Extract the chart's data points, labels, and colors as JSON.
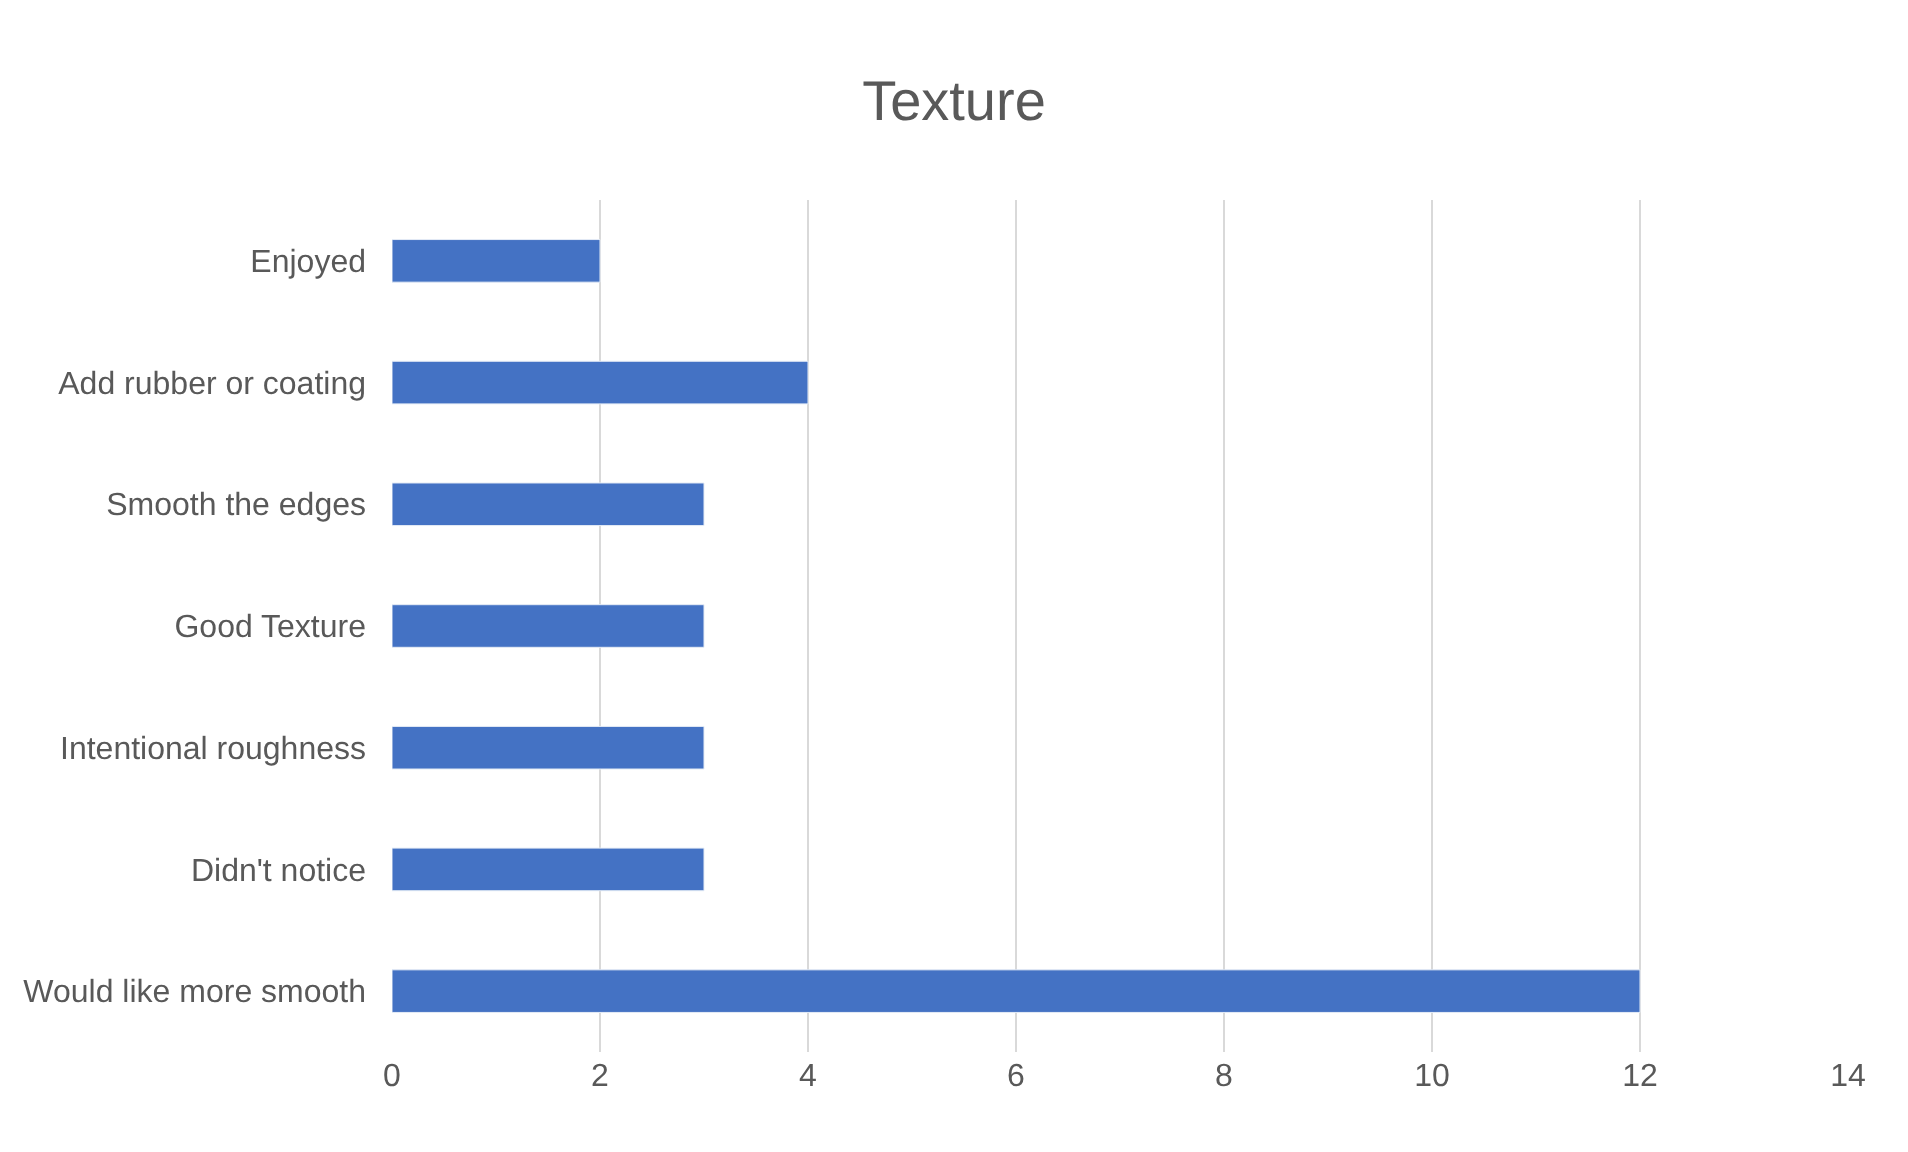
{
  "chart_data": {
    "type": "bar",
    "orientation": "horizontal",
    "title": "Texture",
    "categories": [
      "Enjoyed",
      "Add rubber or coating",
      "Smooth the edges",
      "Good Texture",
      "Intentional roughness",
      "Didn't notice",
      "Would like more smooth"
    ],
    "values": [
      2,
      4,
      3,
      3,
      3,
      3,
      12
    ],
    "color": "#4472c4",
    "xlim": [
      0,
      14
    ],
    "xticks": [
      0,
      2,
      4,
      6,
      8,
      10,
      12,
      14
    ],
    "grid": "x",
    "legend": false
  }
}
